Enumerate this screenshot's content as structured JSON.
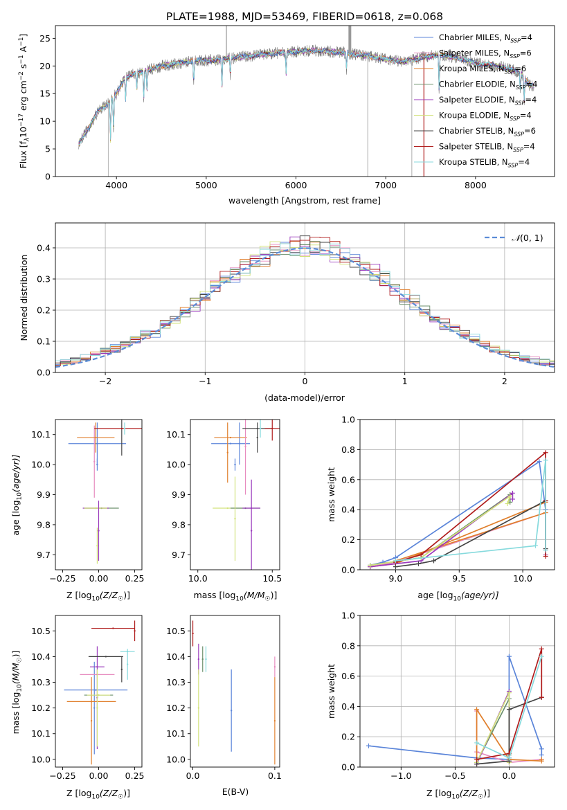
{
  "figure": {
    "title": "PLATE=1988, MJD=53469, FIBERID=0618, z=0.068"
  },
  "colors": {
    "chabrier_miles": "#6a8fd8",
    "salpeter_miles": "#e78bbf",
    "kroupa_miles": "#e07f2c",
    "chabrier_elodie": "#8c8c8c",
    "salpeter_elodie": "#9b3bbd",
    "kroupa_elodie": "#d2e27a",
    "chabrier_stelib": "#555555",
    "salpeter_stelib": "#b01c1c",
    "kroupa_stelib": "#86dadd",
    "grid": "#b0b0b0"
  },
  "chart_data": [
    {
      "id": "spectrum",
      "type": "line",
      "xlabel": "wavelength [Angstrom, rest frame]",
      "ylabel": "Flux [f",
      "ylabel_sub": "λ",
      "ylabel_mid": "10",
      "ylabel_sup1": "−17",
      "ylabel_mid2": " erg cm",
      "ylabel_sup2": "−2",
      "ylabel_mid3": " s",
      "ylabel_sup3": "−1",
      "ylabel_mid4": " A",
      "ylabel_sup4": "−1",
      "ylabel_end": "]",
      "xlim": [
        3320,
        8880
      ],
      "ylim": [
        0,
        27.3
      ],
      "xticks": [
        4000,
        5000,
        6000,
        7000,
        8000
      ],
      "yticks": [
        0,
        5,
        10,
        15,
        20,
        25
      ],
      "grid": false,
      "legend_position": "top-right",
      "anchors": [
        [
          3580,
          6
        ],
        [
          3700,
          9
        ],
        [
          3800,
          12
        ],
        [
          3900,
          13
        ],
        [
          4000,
          15
        ],
        [
          4100,
          18
        ],
        [
          4300,
          19
        ],
        [
          4500,
          20
        ],
        [
          4700,
          20.5
        ],
        [
          4900,
          21
        ],
        [
          5100,
          21
        ],
        [
          5300,
          21.5
        ],
        [
          5600,
          22
        ],
        [
          5900,
          22.5
        ],
        [
          6200,
          22.8
        ],
        [
          6500,
          22.5
        ],
        [
          6800,
          21.8
        ],
        [
          7000,
          21.2
        ],
        [
          7200,
          20.8
        ],
        [
          7400,
          21.5
        ],
        [
          7600,
          22
        ],
        [
          7800,
          21.5
        ],
        [
          8000,
          20.5
        ],
        [
          8300,
          19.8
        ],
        [
          8500,
          18.8
        ],
        [
          8600,
          16.5
        ]
      ],
      "absorptions": [
        [
          3934,
          7
        ],
        [
          3968,
          6
        ],
        [
          4102,
          4
        ],
        [
          4227,
          3
        ],
        [
          4304,
          5
        ],
        [
          4340,
          4
        ],
        [
          4861,
          4
        ],
        [
          5175,
          5
        ],
        [
          5269,
          3
        ],
        [
          5890,
          4
        ],
        [
          6563,
          3
        ],
        [
          7594,
          6
        ],
        [
          8498,
          3
        ],
        [
          8542,
          4
        ],
        [
          8662,
          4
        ]
      ],
      "spikes": [
        [
          5225,
          27.5
        ],
        [
          6600,
          27.5
        ],
        [
          6800,
          0
        ],
        [
          7290,
          0
        ],
        [
          7425,
          0
        ],
        [
          3910,
          0
        ]
      ],
      "series": [
        {
          "name": "Chabrier MILES, N",
          "nssp": "4"
        },
        {
          "name": "Salpeter MILES, N",
          "nssp": "6"
        },
        {
          "name": "Kroupa MILES, N",
          "nssp": "6"
        },
        {
          "name": "Chabrier ELODIE, N",
          "nssp": "4"
        },
        {
          "name": "Salpeter ELODIE, N",
          "nssp": "4"
        },
        {
          "name": "Kroupa ELODIE, N",
          "nssp": "4"
        },
        {
          "name": "Chabrier STELIB, N",
          "nssp": "6"
        },
        {
          "name": "Salpeter STELIB, N",
          "nssp": "4"
        },
        {
          "name": "Kroupa STELIB, N",
          "nssp": "4"
        }
      ],
      "subscript": "SSP"
    },
    {
      "id": "residuals",
      "type": "line",
      "xlabel": "(data-model)/error",
      "ylabel": "Normed distribution",
      "xlim": [
        -2.5,
        2.5
      ],
      "ylim": [
        0,
        0.48
      ],
      "xticks": [
        -2,
        -1,
        0,
        1,
        2
      ],
      "yticks": [
        0.0,
        0.1,
        0.2,
        0.3,
        0.4
      ],
      "grid": true,
      "legend_position": "top-right",
      "legend_label_prefix": "𝒩",
      "legend_label": "(0, 1)",
      "bin_width": 0.1
    },
    {
      "id": "age_vs_Z",
      "type": "scatter",
      "xlabel_main": "Z [log",
      "xlabel_tail": "(Z/Z",
      "xlabel_end": ")]",
      "ylabel_main": "age  [log",
      "ylabel_tail": "(age/yr)]",
      "xlim": [
        -0.3,
        0.3
      ],
      "ylim": [
        9.65,
        10.15
      ],
      "xticks": [
        -0.25,
        0.0,
        0.25
      ],
      "yticks": [
        9.7,
        9.8,
        9.9,
        10.0,
        10.1
      ],
      "points": [
        {
          "x": -0.01,
          "y": 10.07,
          "xerr": 0.2,
          "yerr": 0.07,
          "c": "chabrier_miles"
        },
        {
          "x": -0.03,
          "y": 10.01,
          "xerr": 0.0,
          "yerr": 0.12,
          "c": "salpeter_miles"
        },
        {
          "x": -0.02,
          "y": 10.09,
          "xerr": 0.13,
          "yerr": 0.05,
          "c": "kroupa_miles"
        },
        {
          "x": 0.02,
          "y": 9.855,
          "xerr": 0.12,
          "yerr": 0.0,
          "c": "chabrier_elodie"
        },
        {
          "x": -0.02,
          "y": 9.855,
          "xerr": 0.09,
          "yerr": 0.0,
          "c": "salpeter_elodie"
        },
        {
          "x": -0.02,
          "y": 9.855,
          "xerr": 0.08,
          "yerr": 0.0,
          "c": "kroupa_elodie"
        },
        {
          "x": 0.16,
          "y": 10.12,
          "xerr": 0.0,
          "yerr": 0.09,
          "c": "chabrier_stelib"
        },
        {
          "x": 0.16,
          "y": 10.12,
          "xerr": 0.19,
          "yerr": 0.0,
          "c": "salpeter_stelib"
        },
        {
          "x": 0.18,
          "y": 10.12,
          "xerr": 0.0,
          "yerr": 0.02,
          "c": "kroupa_stelib"
        },
        {
          "x": 0.0,
          "y": 9.78,
          "xerr": 0.0,
          "yerr": 0.1,
          "c": "salpeter_elodie"
        },
        {
          "x": -0.01,
          "y": 9.73,
          "xerr": 0.0,
          "yerr": 0.06,
          "c": "kroupa_elodie"
        },
        {
          "x": -0.01,
          "y": 10.0,
          "xerr": 0.0,
          "yerr": 0.02,
          "c": "chabrier_miles"
        }
      ]
    },
    {
      "id": "age_vs_mass",
      "type": "scatter",
      "xlabel_main": "mass [log",
      "xlabel_tail": "(M/M",
      "xlabel_end": ")]",
      "xlim": [
        9.95,
        10.55
      ],
      "ylim": [
        9.65,
        10.15
      ],
      "xticks": [
        10.0,
        10.5
      ],
      "yticks": [
        9.7,
        9.8,
        9.9,
        10.0,
        10.1
      ],
      "points": [
        {
          "x": 10.22,
          "y": 10.07,
          "xerr": 0.13,
          "yerr": 0.0,
          "c": "chabrier_miles"
        },
        {
          "x": 10.28,
          "y": 10.07,
          "xerr": 0.0,
          "yerr": 0.07,
          "c": "chabrier_miles"
        },
        {
          "x": 10.22,
          "y": 10.09,
          "xerr": 0.11,
          "yerr": 0.0,
          "c": "kroupa_miles"
        },
        {
          "x": 10.2,
          "y": 10.04,
          "xerr": 0.0,
          "yerr": 0.1,
          "c": "kroupa_miles"
        },
        {
          "x": 10.25,
          "y": 10.0,
          "xerr": 0.0,
          "yerr": 0.02,
          "c": "chabrier_miles"
        },
        {
          "x": 10.32,
          "y": 10.06,
          "xerr": 0.0,
          "yerr": 0.16,
          "c": "salpeter_miles"
        },
        {
          "x": 10.2,
          "y": 9.855,
          "xerr": 0.1,
          "yerr": 0.0,
          "c": "kroupa_elodie"
        },
        {
          "x": 10.32,
          "y": 9.855,
          "xerr": 0.1,
          "yerr": 0.0,
          "c": "chabrier_elodie"
        },
        {
          "x": 10.36,
          "y": 9.855,
          "xerr": 0.06,
          "yerr": 0.0,
          "c": "salpeter_elodie"
        },
        {
          "x": 10.36,
          "y": 9.78,
          "xerr": 0.0,
          "yerr": 0.17,
          "c": "salpeter_elodie"
        },
        {
          "x": 10.25,
          "y": 9.82,
          "xerr": 0.0,
          "yerr": 0.14,
          "c": "kroupa_elodie"
        },
        {
          "x": 10.4,
          "y": 10.12,
          "xerr": 0.1,
          "yerr": 0.0,
          "c": "chabrier_stelib"
        },
        {
          "x": 10.4,
          "y": 10.09,
          "xerr": 0.0,
          "yerr": 0.05,
          "c": "chabrier_stelib"
        },
        {
          "x": 10.5,
          "y": 10.12,
          "xerr": 0.05,
          "yerr": 0.04,
          "c": "salpeter_stelib"
        },
        {
          "x": 10.42,
          "y": 10.12,
          "xerr": 0.0,
          "yerr": 0.03,
          "c": "kroupa_stelib"
        }
      ]
    },
    {
      "id": "weight_vs_age",
      "type": "line",
      "xlabel_main": "age  [log",
      "xlabel_tail": "(age/yr)]",
      "ylabel": "mass weight",
      "xlim": [
        8.72,
        10.25
      ],
      "ylim": [
        0,
        1.0
      ],
      "xticks": [
        9.0,
        9.5,
        10.0
      ],
      "yticks": [
        0.0,
        0.2,
        0.4,
        0.6,
        0.8,
        1.0
      ],
      "grid": true,
      "series": [
        {
          "c": "chabrier_miles",
          "x": [
            8.8,
            8.9,
            9.0,
            10.13,
            10.18,
            10.18
          ],
          "y": [
            0.03,
            0.05,
            0.08,
            0.72,
            0.4,
            0.1
          ]
        },
        {
          "c": "salpeter_miles",
          "x": [
            8.8,
            9.0,
            10.18,
            10.18
          ],
          "y": [
            0.02,
            0.05,
            0.38,
            0.1
          ]
        },
        {
          "c": "kroupa_miles",
          "x": [
            8.8,
            9.0,
            10.18,
            10.18,
            9.0
          ],
          "y": [
            0.02,
            0.04,
            0.45,
            0.38,
            0.06
          ]
        },
        {
          "c": "chabrier_elodie",
          "x": [
            8.8,
            9.2,
            9.9,
            9.9
          ],
          "y": [
            0.03,
            0.08,
            0.5,
            0.45
          ]
        },
        {
          "c": "salpeter_elodie",
          "x": [
            8.8,
            9.2,
            9.92,
            9.92
          ],
          "y": [
            0.02,
            0.06,
            0.51,
            0.47
          ]
        },
        {
          "c": "kroupa_elodie",
          "x": [
            8.8,
            9.2,
            9.9,
            9.88
          ],
          "y": [
            0.03,
            0.08,
            0.49,
            0.44
          ]
        },
        {
          "c": "chabrier_stelib",
          "x": [
            9.0,
            9.18,
            9.3,
            10.18,
            10.18
          ],
          "y": [
            0.02,
            0.04,
            0.06,
            0.46,
            0.14
          ]
        },
        {
          "c": "salpeter_stelib",
          "x": [
            9.0,
            9.2,
            10.18,
            10.18,
            10.18
          ],
          "y": [
            0.05,
            0.1,
            0.78,
            0.46,
            0.09
          ]
        },
        {
          "c": "kroupa_stelib",
          "x": [
            9.0,
            10.1,
            10.18,
            10.18
          ],
          "y": [
            0.06,
            0.16,
            0.73,
            0.13
          ]
        }
      ]
    },
    {
      "id": "mass_vs_Z",
      "type": "scatter",
      "xlabel_main": "Z [log",
      "xlabel_tail": "(Z/Z",
      "xlabel_end": ")]",
      "ylabel_main": "mass [log",
      "ylabel_tail": "(M/M",
      "ylabel_end": ")]",
      "xlim": [
        -0.3,
        0.3
      ],
      "ylim": [
        9.97,
        10.56
      ],
      "xticks": [
        -0.25,
        0.0,
        0.25
      ],
      "yticks": [
        10.0,
        10.1,
        10.2,
        10.3,
        10.4,
        10.5
      ],
      "points": [
        {
          "x": -0.02,
          "y": 10.27,
          "xerr": 0.22,
          "yerr": 0.0,
          "c": "chabrier_miles"
        },
        {
          "x": -0.03,
          "y": 10.2,
          "xerr": 0.0,
          "yerr": 0.18,
          "c": "chabrier_miles"
        },
        {
          "x": -0.05,
          "y": 10.225,
          "xerr": 0.17,
          "yerr": 0.0,
          "c": "kroupa_miles"
        },
        {
          "x": -0.05,
          "y": 10.15,
          "xerr": 0.0,
          "yerr": 0.17,
          "c": "kroupa_miles"
        },
        {
          "x": -0.01,
          "y": 10.33,
          "xerr": 0.12,
          "yerr": 0.0,
          "c": "salpeter_miles"
        },
        {
          "x": 0.0,
          "y": 10.25,
          "xerr": 0.1,
          "yerr": 0.0,
          "c": "chabrier_elodie"
        },
        {
          "x": 0.0,
          "y": 10.25,
          "xerr": 0.08,
          "yerr": 0.0,
          "c": "kroupa_elodie"
        },
        {
          "x": -0.01,
          "y": 10.36,
          "xerr": 0.05,
          "yerr": 0.0,
          "c": "salpeter_elodie"
        },
        {
          "x": -0.01,
          "y": 10.24,
          "xerr": 0.0,
          "yerr": 0.2,
          "c": "salpeter_elodie"
        },
        {
          "x": -0.01,
          "y": 10.2,
          "xerr": 0.0,
          "yerr": 0.15,
          "c": "kroupa_elodie"
        },
        {
          "x": 0.05,
          "y": 10.4,
          "xerr": 0.12,
          "yerr": 0.0,
          "c": "chabrier_stelib"
        },
        {
          "x": 0.16,
          "y": 10.35,
          "xerr": 0.0,
          "yerr": 0.05,
          "c": "chabrier_stelib"
        },
        {
          "x": 0.1,
          "y": 10.51,
          "xerr": 0.15,
          "yerr": 0.0,
          "c": "salpeter_stelib"
        },
        {
          "x": 0.25,
          "y": 10.5,
          "xerr": 0.0,
          "yerr": 0.04,
          "c": "salpeter_stelib"
        },
        {
          "x": 0.2,
          "y": 10.42,
          "xerr": 0.05,
          "yerr": 0.0,
          "c": "kroupa_stelib"
        },
        {
          "x": 0.2,
          "y": 10.37,
          "xerr": 0.0,
          "yerr": 0.06,
          "c": "kroupa_stelib"
        }
      ]
    },
    {
      "id": "mass_vs_ebv",
      "type": "scatter",
      "xlabel": "E(B-V)",
      "xlim": [
        -0.003,
        0.106
      ],
      "ylim": [
        9.97,
        10.56
      ],
      "xticks": [
        0.0,
        0.1
      ],
      "yticks": [
        10.0,
        10.1,
        10.2,
        10.3,
        10.4,
        10.5
      ],
      "points": [
        {
          "x": 0.0,
          "y": 10.49,
          "xerr": 0.0,
          "yerr": 0.05,
          "c": "salpeter_stelib"
        },
        {
          "x": 0.007,
          "y": 10.39,
          "xerr": 0.0,
          "yerr": 0.06,
          "c": "salpeter_elodie"
        },
        {
          "x": 0.007,
          "y": 10.2,
          "xerr": 0.0,
          "yerr": 0.15,
          "c": "kroupa_elodie"
        },
        {
          "x": 0.012,
          "y": 10.39,
          "xerr": 0.0,
          "yerr": 0.05,
          "c": "chabrier_elodie"
        },
        {
          "x": 0.016,
          "y": 10.39,
          "xerr": 0.0,
          "yerr": 0.05,
          "c": "kroupa_stelib"
        },
        {
          "x": 0.047,
          "y": 10.19,
          "xerr": 0.0,
          "yerr": 0.16,
          "c": "chabrier_miles"
        },
        {
          "x": 0.1,
          "y": 10.15,
          "xerr": 0.0,
          "yerr": 0.17,
          "c": "kroupa_miles"
        },
        {
          "x": 0.1,
          "y": 10.36,
          "xerr": 0.0,
          "yerr": 0.04,
          "c": "salpeter_miles"
        }
      ]
    },
    {
      "id": "weight_vs_Z",
      "type": "line",
      "xlabel_main": "Z [log",
      "xlabel_tail": "(Z/Z",
      "xlabel_end": ")]",
      "ylabel": "mass weight",
      "xlim": [
        -1.38,
        0.42
      ],
      "ylim": [
        0,
        1.0
      ],
      "xticks": [
        -1.0,
        -0.5,
        0.0
      ],
      "yticks": [
        0.0,
        0.2,
        0.4,
        0.6,
        0.8,
        1.0
      ],
      "grid": true,
      "series": [
        {
          "c": "chabrier_miles",
          "x": [
            -1.3,
            -0.3,
            0.0,
            0.0,
            0.3,
            0.3
          ],
          "y": [
            0.14,
            0.06,
            0.05,
            0.73,
            0.12,
            0.08
          ]
        },
        {
          "c": "salpeter_miles",
          "x": [
            -0.3,
            -0.3,
            0.0,
            0.3
          ],
          "y": [
            0.37,
            0.1,
            0.03,
            0.05
          ]
        },
        {
          "c": "kroupa_miles",
          "x": [
            -0.3,
            -0.3,
            0.0,
            0.3,
            0.3
          ],
          "y": [
            0.02,
            0.38,
            0.05,
            0.04,
            0.05
          ]
        },
        {
          "c": "chabrier_elodie",
          "x": [
            -0.3,
            0.0,
            0.0
          ],
          "y": [
            0.03,
            0.45,
            0.08
          ]
        },
        {
          "c": "salpeter_elodie",
          "x": [
            -0.3,
            0.0,
            0.0
          ],
          "y": [
            0.02,
            0.5,
            0.06
          ]
        },
        {
          "c": "kroupa_elodie",
          "x": [
            -0.3,
            0.0,
            0.0
          ],
          "y": [
            0.03,
            0.49,
            0.03
          ]
        },
        {
          "c": "chabrier_stelib",
          "x": [
            -0.3,
            0.0,
            0.0,
            0.3
          ],
          "y": [
            0.02,
            0.04,
            0.38,
            0.46
          ]
        },
        {
          "c": "salpeter_stelib",
          "x": [
            -0.3,
            0.0,
            0.3,
            0.3
          ],
          "y": [
            0.05,
            0.09,
            0.78,
            0.46
          ]
        },
        {
          "c": "kroupa_stelib",
          "x": [
            -0.3,
            0.0,
            0.3
          ],
          "y": [
            0.16,
            0.06,
            0.73
          ]
        }
      ]
    }
  ]
}
